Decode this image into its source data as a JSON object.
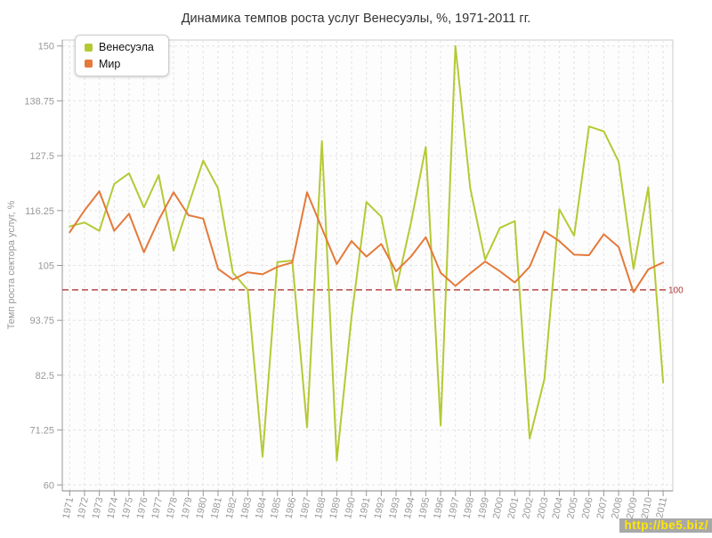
{
  "title": "Динамика темпов роста услуг Венесуэлы, %, 1971-2011 гг.",
  "watermark": "http://be5.biz/",
  "guide": {
    "value": 100,
    "label": "100",
    "color": "#b03535"
  },
  "colors": {
    "venezuela": "#b5c935",
    "world": "#e5793a",
    "gridline": "#e4e4e4",
    "axis_line": "#888888",
    "tick": "#999999",
    "plot_border": "#cccccc",
    "plot_bg": "#fdfdfd"
  },
  "legend": {
    "items": [
      "Венесуэла",
      "Мир"
    ]
  },
  "chart_data": {
    "type": "line",
    "title": "Динамика темпов роста услуг Венесуэлы, %, 1971-2011 гг.",
    "xlabel": "",
    "ylabel": "Темп роста сектора услуг, %",
    "ylim": [
      60,
      150
    ],
    "yticks": [
      60,
      71.25,
      82.5,
      93.75,
      105,
      116.25,
      127.5,
      138.75,
      150
    ],
    "ytick_labels": [
      "60",
      "71.25",
      "82.5",
      "93.75",
      "105",
      "116.25",
      "127.5",
      "138.75",
      "150"
    ],
    "grid": true,
    "legend_position": "top-left",
    "guide_line": 100,
    "x": [
      1971,
      1972,
      1973,
      1974,
      1975,
      1976,
      1977,
      1978,
      1979,
      1980,
      1981,
      1982,
      1983,
      1984,
      1985,
      1986,
      1987,
      1988,
      1989,
      1990,
      1991,
      1992,
      1993,
      1994,
      1995,
      1996,
      1997,
      1998,
      1999,
      2000,
      2001,
      2002,
      2003,
      2004,
      2005,
      2006,
      2007,
      2008,
      2009,
      2010,
      2011
    ],
    "series": [
      {
        "name": "Венесуэла",
        "color": "#b5c935",
        "values": [
          113.0,
          113.8,
          112.1,
          121.7,
          123.9,
          116.9,
          123.5,
          108.0,
          117.3,
          126.5,
          120.8,
          103.5,
          100.0,
          65.8,
          105.7,
          106.0,
          71.8,
          130.5,
          65.0,
          94.5,
          118.0,
          115.0,
          100.1,
          113.7,
          129.3,
          72.2,
          150.0,
          120.8,
          106.2,
          112.7,
          114.1,
          69.5,
          81.7,
          116.5,
          111.1,
          133.5,
          132.5,
          126.3,
          104.3,
          121.0,
          81.0
        ]
      },
      {
        "name": "Мир",
        "color": "#e5793a",
        "values": [
          111.8,
          116.3,
          120.2,
          112.1,
          115.6,
          107.7,
          114.3,
          120.0,
          115.3,
          114.6,
          104.3,
          102.1,
          103.6,
          103.2,
          104.7,
          105.6,
          120.0,
          112.6,
          105.3,
          110.0,
          106.8,
          109.4,
          103.8,
          106.8,
          110.8,
          103.5,
          100.8,
          103.4,
          105.8,
          103.8,
          101.5,
          104.7,
          112.0,
          110.0,
          107.2,
          107.1,
          111.4,
          108.8,
          99.5,
          104.2,
          105.6
        ]
      }
    ]
  }
}
